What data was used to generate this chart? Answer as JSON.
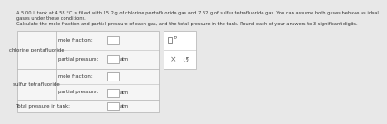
{
  "title_line1": "A 5.00 L tank at 4.58 °C is filled with 15.2 g of chlorine pentafluoride gas and 7.62 g of sulfur tetrafluoride gas. You can assume both gases behave as ideal",
  "title_line2": "gases under these conditions.",
  "subtitle": "Calculate the mole fraction and partial pressure of each gas, and the total pressure in the tank. Round each of your answers to 3 significant digits.",
  "row1_label": "chlorine pentafluoride",
  "row1_mole": "mole fraction:",
  "row1_partial": "partial pressure:",
  "row2_label": "sulfur tetrafluoride",
  "row2_mole": "mole fraction:",
  "row2_partial": "partial pressure:",
  "row3_label": "Total pressure in tank:",
  "unit_atm": "atm",
  "bg_color": "#e8e8e8",
  "table_bg": "#f5f5f5",
  "header_bg": "#f0f0f0",
  "border_color": "#bbbbbb",
  "text_color": "#333333",
  "white": "#ffffff",
  "overlay_bg": "#ffffff",
  "overlay_border": "#bbbbbb",
  "input_border": "#999999"
}
